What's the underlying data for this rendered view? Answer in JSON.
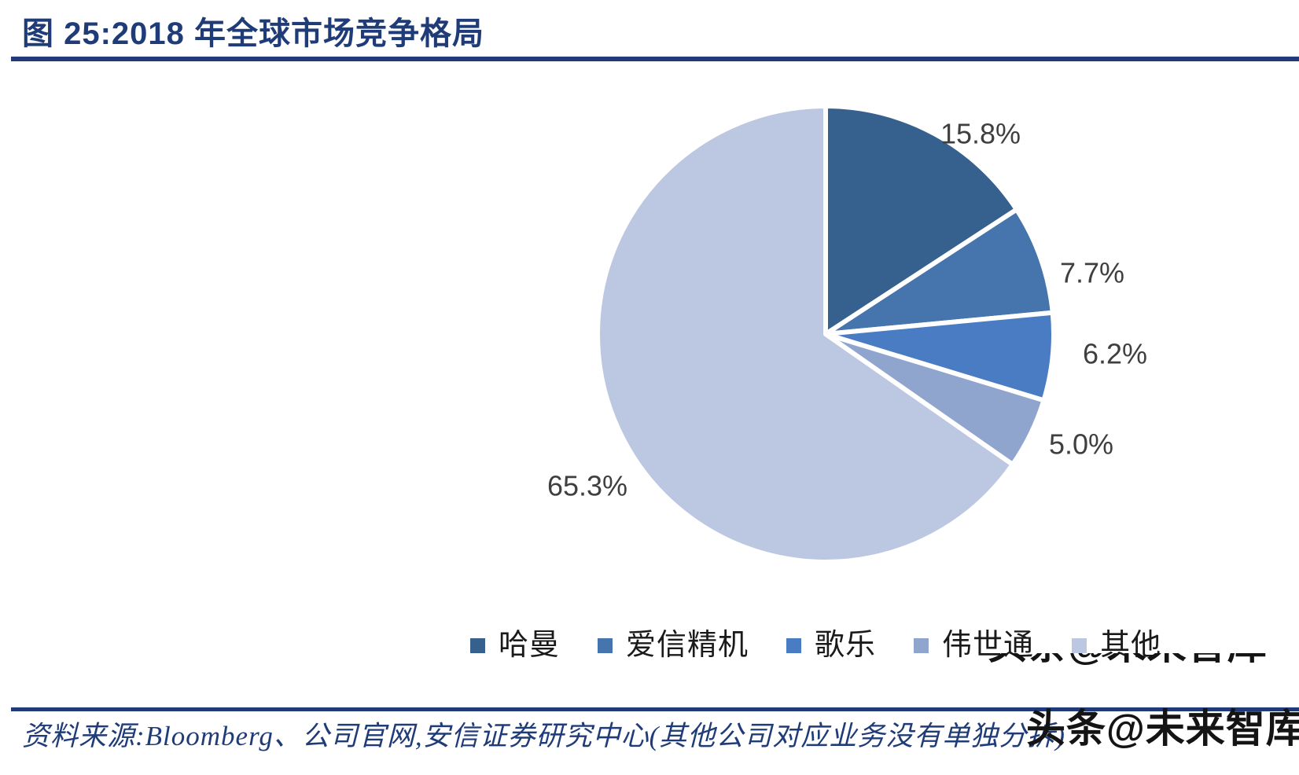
{
  "figure": {
    "title": "图 25:2018 年全球市场竞争格局",
    "source_note": "资料来源:Bloomberg、公司官网,安信证券研究中心(其他公司对应业务没有单独分拆)",
    "watermark": "头条@未来智库"
  },
  "colors": {
    "title_navy": "#1F3C78",
    "rule_navy": "#1F3C78",
    "source_navy": "#1F3C78",
    "pie_label_gray": "#3F3F3F",
    "legend_text": "#1A1A1A",
    "watermark_black": "#141414",
    "slice_border_white": "#FFFFFF"
  },
  "chart_data": {
    "type": "pie",
    "title": "2018 年全球市场竞争格局",
    "legend_position": "bottom",
    "label_format": "{value}%",
    "start_angle_deg": 0,
    "direction": "clockwise",
    "segments": [
      {
        "name": "哈曼",
        "value": 15.8,
        "color": "#36608E"
      },
      {
        "name": "爱信精机",
        "value": 7.7,
        "color": "#4674AC"
      },
      {
        "name": "歌乐",
        "value": 6.2,
        "color": "#4A7CC4"
      },
      {
        "name": "伟世通",
        "value": 5.0,
        "color": "#90A5CE"
      },
      {
        "name": "其他",
        "value": 65.3,
        "color": "#BCC8E1"
      }
    ]
  }
}
